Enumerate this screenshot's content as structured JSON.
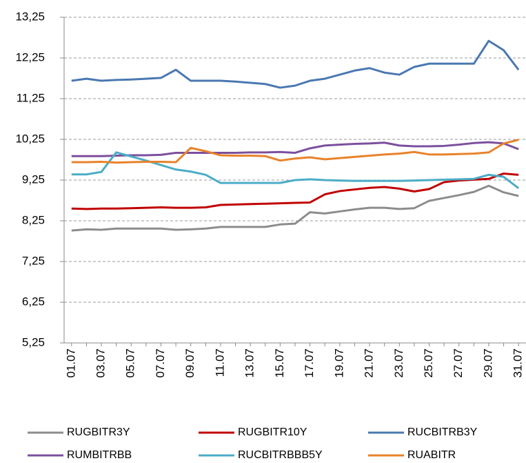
{
  "chart_data": {
    "type": "line",
    "categories": [
      "01.07",
      null,
      "03.07",
      null,
      "05.07",
      null,
      "07.07",
      null,
      "09.07",
      null,
      "11.07",
      null,
      "13.07",
      null,
      "15.07",
      null,
      "17.07",
      null,
      "19.07",
      null,
      "21.07",
      null,
      "23.07",
      null,
      "25.07",
      null,
      "27.07",
      null,
      "29.07",
      null,
      "31.07"
    ],
    "ylim": [
      5.25,
      13.25
    ],
    "yticks": [
      {
        "value": 5.25,
        "label": "5,25"
      },
      {
        "value": 6.25,
        "label": "6,25"
      },
      {
        "value": 7.25,
        "label": "7,25"
      },
      {
        "value": 8.25,
        "label": "8,25"
      },
      {
        "value": 9.25,
        "label": "9,25"
      },
      {
        "value": 10.25,
        "label": "10,25"
      },
      {
        "value": 11.25,
        "label": "11,25"
      },
      {
        "value": 12.25,
        "label": "12,25"
      },
      {
        "value": 13.25,
        "label": "13,25"
      }
    ],
    "grid": true,
    "legend": "bottom",
    "series": [
      {
        "name": "RUGBITR3Y",
        "color": "#8c8c8c",
        "values": [
          8.01,
          8.04,
          8.03,
          8.06,
          8.06,
          8.06,
          8.06,
          8.03,
          8.04,
          8.06,
          8.1,
          8.1,
          8.1,
          8.1,
          8.16,
          8.18,
          8.46,
          8.43,
          8.48,
          8.53,
          8.57,
          8.57,
          8.54,
          8.56,
          8.74,
          8.81,
          8.88,
          8.96,
          9.11,
          8.95,
          8.86
        ]
      },
      {
        "name": "RUGBITR10Y",
        "color": "#c00000",
        "values": [
          8.55,
          8.54,
          8.55,
          8.55,
          8.56,
          8.57,
          8.58,
          8.57,
          8.57,
          8.58,
          8.64,
          8.65,
          8.66,
          8.67,
          8.68,
          8.69,
          8.7,
          8.9,
          8.98,
          9.02,
          9.06,
          9.08,
          9.04,
          8.97,
          9.03,
          9.2,
          9.24,
          9.26,
          9.28,
          9.41,
          9.38
        ]
      },
      {
        "name": "RUCBITRB3Y",
        "color": "#4a78b0",
        "values": [
          11.69,
          11.74,
          11.69,
          11.71,
          11.72,
          11.74,
          11.76,
          11.96,
          11.69,
          11.69,
          11.69,
          11.67,
          11.64,
          11.61,
          11.52,
          11.57,
          11.69,
          11.74,
          11.84,
          11.94,
          12.0,
          11.89,
          11.84,
          12.03,
          12.11,
          12.11,
          12.11,
          12.11,
          12.67,
          12.44,
          11.96
        ]
      },
      {
        "name": "RUMBITRBB",
        "color": "#7b4f9e",
        "values": [
          9.84,
          9.84,
          9.84,
          9.85,
          9.86,
          9.86,
          9.87,
          9.92,
          9.92,
          9.92,
          9.92,
          9.92,
          9.93,
          9.93,
          9.94,
          9.92,
          10.03,
          10.1,
          10.12,
          10.14,
          10.15,
          10.17,
          10.1,
          10.08,
          10.08,
          10.09,
          10.12,
          10.16,
          10.18,
          10.15,
          10.01
        ]
      },
      {
        "name": "RUCBITRBBB5Y",
        "color": "#4bacc6",
        "values": [
          9.39,
          9.39,
          9.45,
          9.93,
          9.83,
          9.73,
          9.62,
          9.51,
          9.46,
          9.38,
          9.18,
          9.18,
          9.18,
          9.18,
          9.18,
          9.25,
          9.27,
          9.25,
          9.24,
          9.23,
          9.23,
          9.23,
          9.23,
          9.24,
          9.25,
          9.26,
          9.27,
          9.28,
          9.38,
          9.33,
          9.05
        ]
      },
      {
        "name": "RUABITR",
        "color": "#e8822a",
        "values": [
          9.69,
          9.69,
          9.7,
          9.68,
          9.69,
          9.7,
          9.7,
          9.69,
          10.04,
          9.96,
          9.86,
          9.85,
          9.85,
          9.84,
          9.73,
          9.78,
          9.81,
          9.76,
          9.79,
          9.82,
          9.85,
          9.88,
          9.9,
          9.94,
          9.88,
          9.88,
          9.89,
          9.9,
          9.93,
          10.15,
          10.24
        ]
      }
    ]
  }
}
